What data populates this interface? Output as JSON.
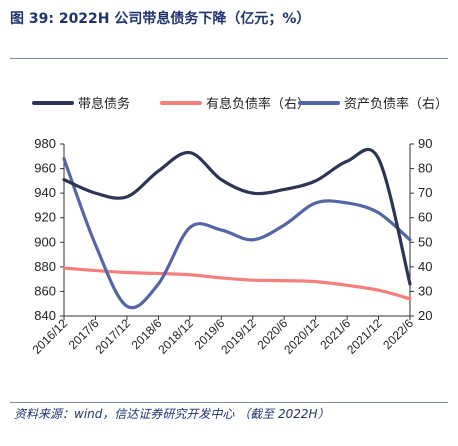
{
  "header": {
    "title": "图 39:  2022H 公司带息债务下降（亿元；%）"
  },
  "footer": {
    "source": "资料来源：wind，信达证券研究开发中心  （截至 2022H）"
  },
  "chart_data": {
    "type": "line",
    "categories": [
      "2016/12",
      "2017/6",
      "2017/12",
      "2018/6",
      "2018/12",
      "2019/6",
      "2019/12",
      "2020/6",
      "2020/12",
      "2021/6",
      "2021/12",
      "2022/6"
    ],
    "y_left": {
      "ticks": [
        840,
        860,
        880,
        900,
        920,
        940,
        960,
        980
      ],
      "ylim": [
        840,
        980
      ]
    },
    "y_right": {
      "ticks": [
        20,
        30,
        40,
        50,
        60,
        70,
        80,
        90
      ],
      "ylim": [
        20,
        90
      ]
    },
    "legend_position": "top",
    "grid": false,
    "series": [
      {
        "name": "带息债务",
        "axis": "left",
        "color": "#2d3554",
        "values": [
          951,
          940,
          937,
          958,
          973,
          951,
          940,
          943,
          950,
          966,
          968,
          866
        ]
      },
      {
        "name": "有息负债率（右）",
        "axis": "right",
        "color": "#f47f7c",
        "values": [
          39.5,
          38.5,
          37.7,
          37.3,
          36.8,
          35.5,
          34.6,
          34.4,
          34.0,
          32.5,
          30.5,
          27.0
        ]
      },
      {
        "name": "资产负债率（右）",
        "axis": "right",
        "color": "#5466a6",
        "values": [
          84,
          49,
          24,
          33,
          56,
          55,
          51,
          57,
          66,
          66,
          62,
          51
        ]
      }
    ]
  }
}
